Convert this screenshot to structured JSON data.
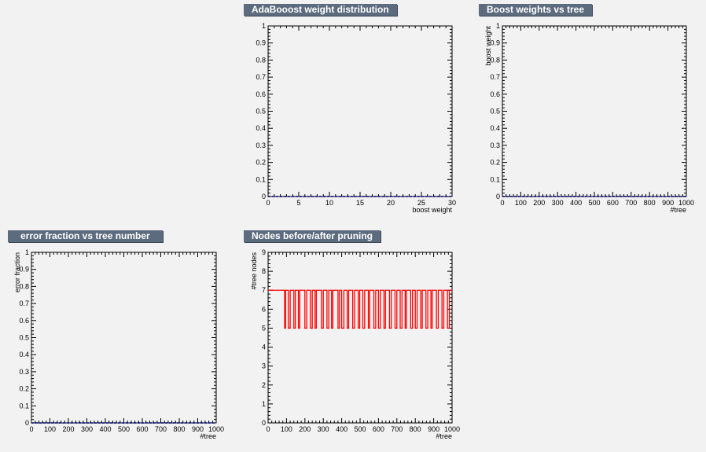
{
  "chart_data": [
    {
      "id": "adaboost",
      "type": "line",
      "title": "AdaBooost weight distribution",
      "xlabel": "boost weight",
      "ylabel": "",
      "xlim": [
        0,
        30
      ],
      "ylim": [
        0,
        1
      ],
      "xticks": [
        0,
        5,
        10,
        15,
        20,
        25,
        30
      ],
      "yticks": [
        0,
        0.1,
        0.2,
        0.3,
        0.4,
        0.5,
        0.6,
        0.7,
        0.8,
        0.9,
        1
      ],
      "series": [
        {
          "x": [
            0,
            30
          ],
          "y": [
            0,
            0
          ],
          "color": "#000080"
        }
      ],
      "grid": false
    },
    {
      "id": "boostvstree",
      "type": "line",
      "title": "Boost weights vs tree",
      "xlabel": "#tree",
      "ylabel": "boost weight",
      "xlim": [
        0,
        1000
      ],
      "ylim": [
        0,
        1
      ],
      "xticks": [
        0,
        100,
        200,
        300,
        400,
        500,
        600,
        700,
        800,
        900,
        1000
      ],
      "yticks": [
        0,
        0.1,
        0.2,
        0.3,
        0.4,
        0.5,
        0.6,
        0.7,
        0.8,
        0.9,
        1
      ],
      "series": [
        {
          "x": [
            0,
            1000
          ],
          "y": [
            0,
            0
          ],
          "color": "#000080"
        }
      ],
      "grid": false
    },
    {
      "id": "errfrac",
      "type": "line",
      "title": "error fraction vs tree number",
      "xlabel": "#tree",
      "ylabel": "error fraction",
      "xlim": [
        0,
        1000
      ],
      "ylim": [
        0,
        1
      ],
      "xticks": [
        0,
        100,
        200,
        300,
        400,
        500,
        600,
        700,
        800,
        900,
        1000
      ],
      "yticks": [
        0,
        0.1,
        0.2,
        0.3,
        0.4,
        0.5,
        0.6,
        0.7,
        0.8,
        0.9,
        1
      ],
      "series": [
        {
          "x": [
            0,
            1000
          ],
          "y": [
            0,
            0
          ],
          "color": "#000080"
        }
      ],
      "grid": false
    },
    {
      "id": "nodes",
      "type": "line",
      "title": "Nodes before/after pruning",
      "xlabel": "#tree",
      "ylabel": "#tree nodes",
      "xlim": [
        0,
        1000
      ],
      "ylim": [
        0,
        9
      ],
      "xticks": [
        0,
        100,
        200,
        300,
        400,
        500,
        600,
        700,
        800,
        900,
        1000
      ],
      "yticks": [
        0,
        1,
        2,
        3,
        4,
        5,
        6,
        7,
        8,
        9
      ],
      "series": [
        {
          "color": "#ff0000",
          "segments": [
            [
              0,
              75,
              7
            ],
            [
              75,
              90,
              7
            ],
            [
              90,
              95,
              5
            ],
            [
              95,
              110,
              7
            ],
            [
              110,
              120,
              5
            ],
            [
              120,
              140,
              7
            ],
            [
              140,
              148,
              5
            ],
            [
              148,
              165,
              7
            ],
            [
              165,
              172,
              5
            ],
            [
              172,
              200,
              7
            ],
            [
              200,
              210,
              5
            ],
            [
              210,
              230,
              7
            ],
            [
              230,
              240,
              5
            ],
            [
              240,
              255,
              7
            ],
            [
              255,
              262,
              5
            ],
            [
              262,
              290,
              7
            ],
            [
              290,
              300,
              5
            ],
            [
              300,
              320,
              7
            ],
            [
              320,
              330,
              5
            ],
            [
              330,
              345,
              7
            ],
            [
              345,
              352,
              5
            ],
            [
              352,
              380,
              7
            ],
            [
              380,
              388,
              5
            ],
            [
              388,
              400,
              7
            ],
            [
              400,
              412,
              5
            ],
            [
              412,
              430,
              7
            ],
            [
              430,
              438,
              5
            ],
            [
              438,
              460,
              7
            ],
            [
              460,
              470,
              5
            ],
            [
              470,
              490,
              7
            ],
            [
              490,
              498,
              5
            ],
            [
              498,
              515,
              7
            ],
            [
              515,
              525,
              5
            ],
            [
              525,
              545,
              7
            ],
            [
              545,
              552,
              5
            ],
            [
              552,
              575,
              7
            ],
            [
              575,
              585,
              5
            ],
            [
              585,
              600,
              7
            ],
            [
              600,
              610,
              5
            ],
            [
              610,
              630,
              7
            ],
            [
              630,
              638,
              5
            ],
            [
              638,
              660,
              7
            ],
            [
              660,
              670,
              5
            ],
            [
              670,
              690,
              7
            ],
            [
              690,
              700,
              5
            ],
            [
              700,
              718,
              7
            ],
            [
              718,
              728,
              5
            ],
            [
              728,
              745,
              7
            ],
            [
              745,
              752,
              5
            ],
            [
              752,
              775,
              7
            ],
            [
              775,
              785,
              5
            ],
            [
              785,
              800,
              7
            ],
            [
              800,
              810,
              5
            ],
            [
              810,
              830,
              7
            ],
            [
              830,
              838,
              5
            ],
            [
              838,
              858,
              7
            ],
            [
              858,
              868,
              5
            ],
            [
              868,
              885,
              7
            ],
            [
              885,
              892,
              5
            ],
            [
              892,
              915,
              7
            ],
            [
              915,
              925,
              5
            ],
            [
              925,
              945,
              7
            ],
            [
              945,
              955,
              5
            ],
            [
              955,
              975,
              7
            ],
            [
              975,
              985,
              5
            ],
            [
              985,
              1000,
              7
            ]
          ]
        }
      ],
      "grid": false
    }
  ]
}
